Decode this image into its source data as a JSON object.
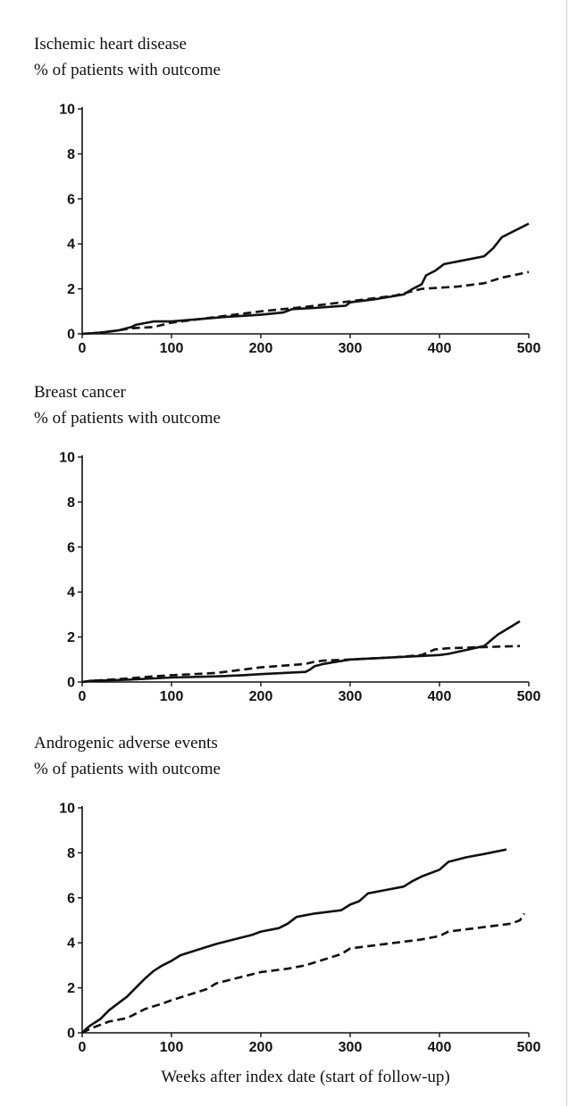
{
  "figure": {
    "xlabel": "Weeks after index date (start of follow-up)"
  },
  "chart_data": [
    {
      "type": "line",
      "title": "Ischemic heart disease",
      "ylabel": "% of patients with outcome",
      "xlabel": "",
      "xlim": [
        0,
        500
      ],
      "ylim": [
        0,
        10
      ],
      "xticks": [
        0,
        100,
        200,
        300,
        400,
        500
      ],
      "yticks": [
        0,
        2,
        4,
        6,
        8,
        10
      ],
      "series": [
        {
          "name": "solid",
          "style": "solid",
          "x": [
            0,
            20,
            40,
            55,
            60,
            80,
            100,
            130,
            160,
            200,
            225,
            235,
            260,
            295,
            300,
            330,
            360,
            370,
            380,
            385,
            395,
            405,
            450,
            460,
            470,
            500
          ],
          "y": [
            0,
            0.05,
            0.15,
            0.3,
            0.4,
            0.55,
            0.55,
            0.65,
            0.75,
            0.85,
            0.95,
            1.1,
            1.15,
            1.25,
            1.4,
            1.55,
            1.75,
            2.0,
            2.2,
            2.6,
            2.8,
            3.1,
            3.45,
            3.8,
            4.3,
            4.9
          ]
        },
        {
          "name": "dashed",
          "style": "dashed",
          "x": [
            0,
            20,
            40,
            55,
            80,
            100,
            150,
            200,
            250,
            300,
            350,
            360,
            380,
            400,
            420,
            450,
            470,
            500
          ],
          "y": [
            0,
            0.05,
            0.15,
            0.25,
            0.3,
            0.5,
            0.75,
            1.0,
            1.2,
            1.45,
            1.7,
            1.8,
            2.0,
            2.05,
            2.1,
            2.25,
            2.5,
            2.75
          ]
        }
      ]
    },
    {
      "type": "line",
      "title": "Breast cancer",
      "ylabel": "% of patients with outcome",
      "xlabel": "",
      "xlim": [
        0,
        500
      ],
      "ylim": [
        0,
        10
      ],
      "xticks": [
        0,
        100,
        200,
        300,
        400,
        500
      ],
      "yticks": [
        0,
        2,
        4,
        6,
        8,
        10
      ],
      "series": [
        {
          "name": "solid",
          "style": "solid",
          "x": [
            0,
            10,
            50,
            100,
            150,
            180,
            200,
            250,
            255,
            260,
            270,
            300,
            400,
            410,
            450,
            465,
            490
          ],
          "y": [
            0,
            0.05,
            0.1,
            0.2,
            0.25,
            0.3,
            0.35,
            0.45,
            0.55,
            0.7,
            0.8,
            1.0,
            1.2,
            1.25,
            1.6,
            2.1,
            2.7
          ]
        },
        {
          "name": "dashed",
          "style": "dashed",
          "x": [
            0,
            10,
            50,
            80,
            100,
            150,
            180,
            200,
            250,
            260,
            270,
            300,
            350,
            380,
            395,
            410,
            450,
            490
          ],
          "y": [
            0,
            0.05,
            0.15,
            0.25,
            0.3,
            0.4,
            0.55,
            0.65,
            0.8,
            0.9,
            0.95,
            1.0,
            1.1,
            1.2,
            1.45,
            1.5,
            1.55,
            1.6
          ]
        }
      ]
    },
    {
      "type": "line",
      "title": "Androgenic adverse events",
      "ylabel": "% of patients with outcome",
      "xlabel": "Weeks after index date (start of follow-up)",
      "xlim": [
        0,
        500
      ],
      "ylim": [
        0,
        10
      ],
      "xticks": [
        0,
        100,
        200,
        300,
        400,
        500
      ],
      "yticks": [
        0,
        2,
        4,
        6,
        8,
        10
      ],
      "series": [
        {
          "name": "solid",
          "style": "solid",
          "x": [
            0,
            5,
            10,
            20,
            30,
            40,
            50,
            60,
            70,
            80,
            90,
            100,
            110,
            130,
            150,
            170,
            190,
            200,
            220,
            230,
            240,
            260,
            290,
            300,
            310,
            320,
            340,
            360,
            370,
            380,
            400,
            410,
            430,
            450,
            475
          ],
          "y": [
            0,
            0.2,
            0.35,
            0.6,
            1.0,
            1.3,
            1.6,
            2.0,
            2.4,
            2.75,
            3.0,
            3.2,
            3.45,
            3.7,
            3.95,
            4.15,
            4.35,
            4.5,
            4.65,
            4.85,
            5.15,
            5.3,
            5.45,
            5.7,
            5.85,
            6.2,
            6.35,
            6.5,
            6.75,
            6.95,
            7.25,
            7.6,
            7.8,
            7.95,
            8.15
          ]
        },
        {
          "name": "dashed",
          "style": "dashed",
          "x": [
            0,
            10,
            20,
            30,
            50,
            60,
            70,
            90,
            100,
            120,
            140,
            150,
            170,
            190,
            200,
            230,
            250,
            270,
            290,
            300,
            330,
            360,
            380,
            400,
            410,
            430,
            460,
            480,
            490,
            495
          ],
          "y": [
            0,
            0.2,
            0.35,
            0.5,
            0.65,
            0.85,
            1.05,
            1.3,
            1.45,
            1.7,
            1.95,
            2.2,
            2.4,
            2.6,
            2.7,
            2.85,
            3.0,
            3.25,
            3.5,
            3.75,
            3.9,
            4.05,
            4.15,
            4.3,
            4.5,
            4.6,
            4.75,
            4.85,
            5.0,
            5.3
          ]
        }
      ]
    }
  ]
}
